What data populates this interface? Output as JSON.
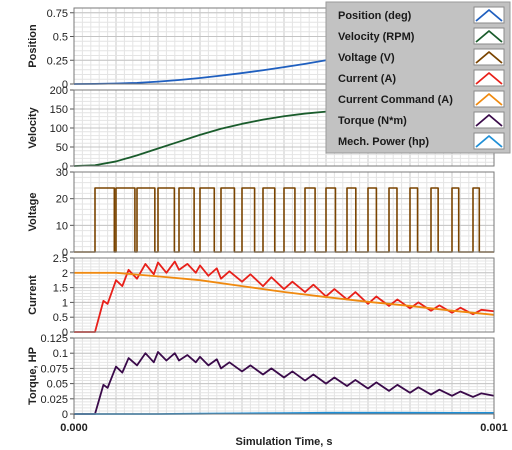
{
  "chart_data": {
    "type": "line",
    "x_axis": {
      "title": "Simulation Time, s",
      "range": [
        0,
        0.001
      ],
      "tick_labels": [
        "0.000",
        "0.001"
      ],
      "minor_grid": true
    },
    "legend": {
      "placement": "top-right",
      "entries": [
        {
          "label": "Position (deg)",
          "color": "#1f5fbf"
        },
        {
          "label": "Velocity (RPM)",
          "color": "#1a5c2c"
        },
        {
          "label": "Voltage (V)",
          "color": "#7a4400"
        },
        {
          "label": "Current (A)",
          "color": "#e8201a"
        },
        {
          "label": "Current Command (A)",
          "color": "#f08a10"
        },
        {
          "label": "Torque (N*m)",
          "color": "#3a0a4a"
        },
        {
          "label": "Mech. Power (hp)",
          "color": "#1f8fd6"
        }
      ]
    },
    "panels": [
      {
        "ylabel": "Position",
        "ylim": [
          0,
          0.8
        ],
        "ticks": [
          "0",
          "0.25",
          "0.5",
          "0.75"
        ],
        "tick_values": [
          0,
          0.25,
          0.5,
          0.75
        ],
        "series": [
          {
            "name": "Position (deg)",
            "color": "#1f5fbf",
            "x": [
              0,
              5e-05,
              0.0001,
              0.00015,
              0.0002,
              0.00025,
              0.0003,
              0.00035,
              0.0004,
              0.00045,
              0.0005,
              0.00055,
              0.0006
            ],
            "y": [
              0,
              0.001,
              0.005,
              0.012,
              0.025,
              0.042,
              0.063,
              0.088,
              0.115,
              0.145,
              0.178,
              0.212,
              0.25
            ]
          }
        ]
      },
      {
        "ylabel": "Velocity",
        "ylim": [
          0,
          200
        ],
        "ticks": [
          "0",
          "50",
          "100",
          "150",
          "200"
        ],
        "tick_values": [
          0,
          50,
          100,
          150,
          200
        ],
        "series": [
          {
            "name": "Velocity (RPM)",
            "color": "#1a5c2c",
            "x": [
              0,
              5e-05,
              0.0001,
              0.00015,
              0.0002,
              0.00025,
              0.0003,
              0.00035,
              0.0004,
              0.00045,
              0.0005,
              0.00055,
              0.0006
            ],
            "y": [
              0,
              2,
              12,
              28,
              46,
              64,
              82,
              98,
              111,
              122,
              131,
              138,
              143
            ]
          }
        ]
      },
      {
        "ylabel": "Voltage",
        "ylim": [
          0,
          30
        ],
        "ticks": [
          "0",
          "10",
          "20",
          "30"
        ],
        "tick_values": [
          0,
          10,
          20,
          30
        ],
        "series": [
          {
            "name": "Voltage (V)",
            "color": "#7a4400",
            "pwm": {
              "high": 24,
              "low": 0,
              "start": 5e-05,
              "period": 5e-05,
              "duty": [
                0.92,
                0.9,
                0.85,
                0.78,
                0.72,
                0.68,
                0.64,
                0.6,
                0.56,
                0.52,
                0.48,
                0.45,
                0.42,
                0.4,
                0.38,
                0.36,
                0.34,
                0.32,
                0.3
              ]
            }
          }
        ]
      },
      {
        "ylabel": "Current",
        "ylim": [
          0,
          2.5
        ],
        "ticks": [
          "0",
          "0.5",
          "1",
          "1.5",
          "2",
          "2.5"
        ],
        "tick_values": [
          0,
          0.5,
          1,
          1.5,
          2,
          2.5
        ],
        "series": [
          {
            "name": "Current (A)",
            "color": "#e8201a",
            "x": [
              0,
              5e-05,
              7e-05,
              8e-05,
              0.0001,
              0.000115,
              0.00013,
              0.00015,
              0.00017,
              0.00019,
              0.0002,
              0.00022,
              0.00024,
              0.00025,
              0.00027,
              0.00029,
              0.0003,
              0.00032,
              0.00034,
              0.00035,
              0.00037,
              0.0004,
              0.00042,
              0.00045,
              0.00047,
              0.0005,
              0.00052,
              0.00055,
              0.00057,
              0.0006,
              0.00062,
              0.00065,
              0.00067,
              0.0007,
              0.00072,
              0.00075,
              0.00077,
              0.0008,
              0.00082,
              0.00085,
              0.00087,
              0.0009,
              0.00092,
              0.00095,
              0.00097,
              0.001
            ],
            "y": [
              0,
              0,
              1.05,
              0.95,
              1.75,
              1.55,
              2.1,
              1.8,
              2.3,
              1.95,
              2.35,
              2.0,
              2.38,
              2.1,
              2.3,
              2.0,
              2.25,
              1.9,
              2.15,
              1.8,
              2.05,
              1.7,
              1.95,
              1.55,
              1.85,
              1.45,
              1.7,
              1.35,
              1.6,
              1.2,
              1.45,
              1.1,
              1.35,
              0.95,
              1.2,
              0.88,
              1.1,
              0.8,
              1.0,
              0.72,
              0.9,
              0.65,
              0.82,
              0.6,
              0.75,
              0.7
            ]
          },
          {
            "name": "Current Command (A)",
            "color": "#f08a10",
            "x": [
              0,
              0.0001,
              0.0002,
              0.0003,
              0.0004,
              0.0005,
              0.0006,
              0.0007,
              0.0008,
              0.0009,
              0.001
            ],
            "y": [
              2.0,
              2.0,
              1.88,
              1.75,
              1.55,
              1.35,
              1.18,
              1.02,
              0.88,
              0.72,
              0.58
            ]
          }
        ]
      },
      {
        "ylabel": "Torque, HP",
        "ylim": [
          0,
          0.125
        ],
        "ticks": [
          "0",
          "0.025",
          "0.05",
          "0.075",
          "0.1",
          "0.125"
        ],
        "tick_values": [
          0,
          0.025,
          0.05,
          0.075,
          0.1,
          0.125
        ],
        "series": [
          {
            "name": "Torque (N*m)",
            "color": "#3a0a4a",
            "x": [
              0,
              5e-05,
              7e-05,
              8e-05,
              0.0001,
              0.000115,
              0.00013,
              0.00015,
              0.00017,
              0.00019,
              0.0002,
              0.00022,
              0.00024,
              0.00025,
              0.00027,
              0.00029,
              0.0003,
              0.00032,
              0.00034,
              0.00035,
              0.00037,
              0.0004,
              0.00042,
              0.00045,
              0.00047,
              0.0005,
              0.00052,
              0.00055,
              0.00057,
              0.0006,
              0.00062,
              0.00065,
              0.00067,
              0.0007,
              0.00072,
              0.00075,
              0.00077,
              0.0008,
              0.00082,
              0.00085,
              0.00087,
              0.0009,
              0.00092,
              0.00095,
              0.00097,
              0.001
            ],
            "y": [
              0,
              0,
              0.048,
              0.043,
              0.078,
              0.068,
              0.092,
              0.08,
              0.1,
              0.085,
              0.102,
              0.088,
              0.1,
              0.088,
              0.097,
              0.085,
              0.094,
              0.08,
              0.09,
              0.075,
              0.085,
              0.07,
              0.08,
              0.065,
              0.075,
              0.06,
              0.07,
              0.055,
              0.065,
              0.05,
              0.06,
              0.046,
              0.056,
              0.042,
              0.052,
              0.038,
              0.048,
              0.035,
              0.044,
              0.032,
              0.04,
              0.03,
              0.037,
              0.028,
              0.034,
              0.03
            ]
          },
          {
            "name": "Mech. Power (hp)",
            "color": "#1f8fd6",
            "x": [
              0,
              0.0001,
              0.0002,
              0.0003,
              0.0004,
              0.0005,
              0.0006,
              0.0007,
              0.0008,
              0.0009,
              0.001
            ],
            "y": [
              0,
              0,
              0,
              0.0005,
              0.001,
              0.0015,
              0.002,
              0.002,
              0.002,
              0.0018,
              0.0018
            ]
          }
        ]
      }
    ]
  }
}
